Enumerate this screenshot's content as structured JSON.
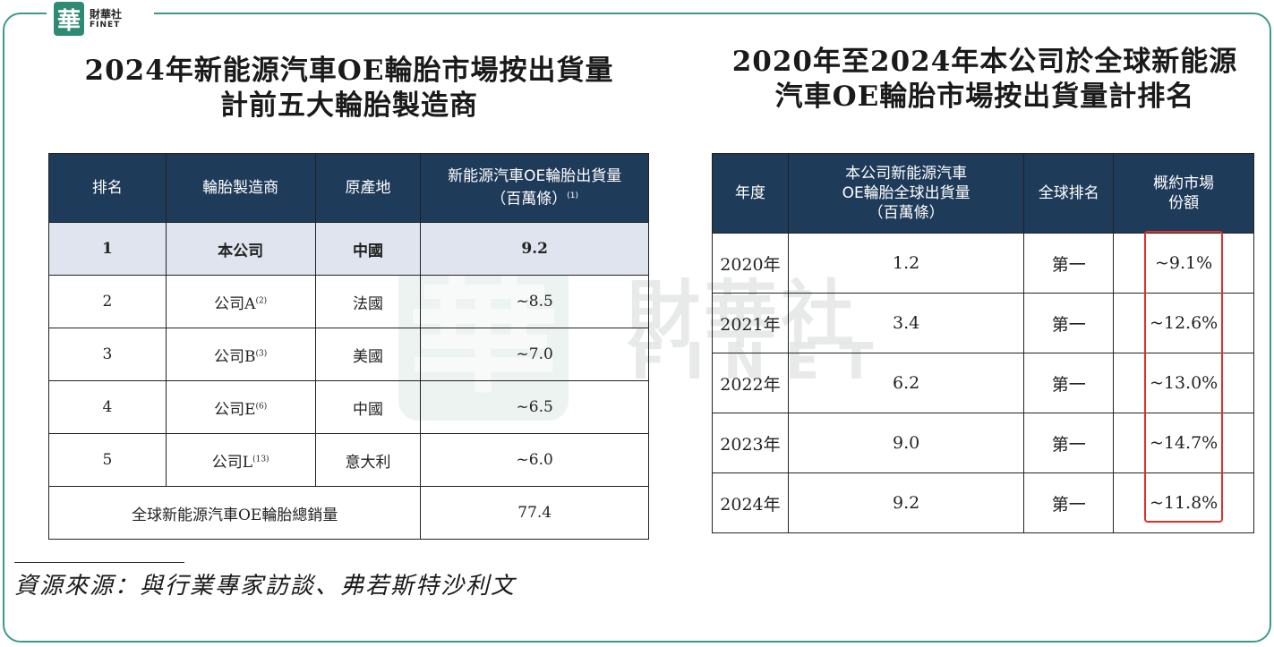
{
  "logo": {
    "mark": "華",
    "name_cn": "財華社",
    "name_en": "FINET"
  },
  "watermark": {
    "mark": "華",
    "name_cn": "財華社",
    "name_en": "FINET"
  },
  "left": {
    "title_line1": "2024年新能源汽車OE輪胎市場按出貨量",
    "title_line2": "計前五大輪胎製造商",
    "headers": {
      "rank": "排名",
      "maker": "輪胎製造商",
      "origin": "原產地",
      "shipments_line1": "新能源汽車OE輪胎出貨量",
      "shipments_line2": "（百萬條）",
      "shipments_note": "(1)"
    },
    "rows": [
      {
        "rank": "1",
        "maker": "本公司",
        "note": "",
        "origin": "中國",
        "value": "9.2"
      },
      {
        "rank": "2",
        "maker": "公司A",
        "note": "(2)",
        "origin": "法國",
        "value": "~8.5"
      },
      {
        "rank": "3",
        "maker": "公司B",
        "note": "(3)",
        "origin": "美國",
        "value": "~7.0"
      },
      {
        "rank": "4",
        "maker": "公司E",
        "note": "(6)",
        "origin": "中國",
        "value": "~6.5"
      },
      {
        "rank": "5",
        "maker": "公司L",
        "note": "(13)",
        "origin": "意大利",
        "value": "~6.0"
      }
    ],
    "total_label": "全球新能源汽車OE輪胎總銷量",
    "total_value": "77.4"
  },
  "right": {
    "title_line1": "2020年至2024年本公司於全球新能源",
    "title_line2": "汽車OE輪胎市場按出貨量計排名",
    "headers": {
      "year": "年度",
      "shipments_line1": "本公司新能源汽車",
      "shipments_line2": "OE輪胎全球出貨量",
      "shipments_line3": "（百萬條）",
      "rank": "全球排名",
      "share_line1": "概約市場",
      "share_line2": "份額"
    },
    "rows": [
      {
        "year": "2020年",
        "shipments": "1.2",
        "rank": "第一",
        "share": "~9.1%"
      },
      {
        "year": "2021年",
        "shipments": "3.4",
        "rank": "第一",
        "share": "~12.6%"
      },
      {
        "year": "2022年",
        "shipments": "6.2",
        "rank": "第一",
        "share": "~13.0%"
      },
      {
        "year": "2023年",
        "shipments": "9.0",
        "rank": "第一",
        "share": "~14.7%"
      },
      {
        "year": "2024年",
        "shipments": "9.2",
        "rank": "第一",
        "share": "~11.8%"
      }
    ]
  },
  "source": "資源來源：與行業專家訪談、弗若斯特沙利文",
  "colors": {
    "frame": "#3e9a86",
    "header_bg": "#1f3b5a",
    "highlight_row": "#dfe4ee",
    "highlight_box": "#e0302a"
  }
}
